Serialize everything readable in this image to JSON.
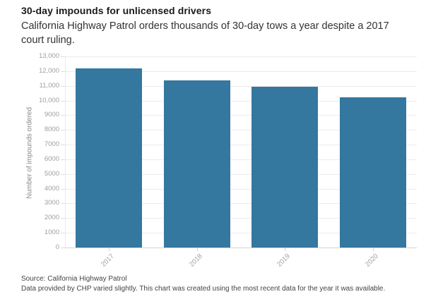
{
  "header": {
    "title": "30-day impounds for unlicensed drivers",
    "subtitle_lines": [
      "California Highway Patrol orders thousands of 30-day tows a year despite a 2017",
      "court ruling."
    ]
  },
  "chart_data": {
    "type": "bar",
    "title": "30-day impounds for unlicensed drivers",
    "subtitle": "California Highway Patrol orders thousands of 30-day tows a year despite a 2017 court ruling.",
    "categories": [
      "2017",
      "2018",
      "2019",
      "2020"
    ],
    "values": [
      12200,
      11350,
      10950,
      10200
    ],
    "xlabel": "",
    "ylabel": "Number of impounds ordered",
    "ylim": [
      0,
      13000
    ],
    "ytick_step": 1000,
    "ytick_labels_bottom_to_top": [
      "0",
      "1000",
      "2000",
      "3000",
      "4000",
      "5000",
      "6000",
      "7000",
      "8000",
      "9000",
      "10,000",
      "11,000",
      "12,000",
      "13,000"
    ],
    "grid": "horizontal",
    "legend": "none",
    "bar_color": "#34779f"
  },
  "footer": {
    "source": "Source: California Highway Patrol",
    "note": "Data provided by CHP varied slightly. This chart was created using the most recent data for the year it was available."
  },
  "colors": {
    "background": "#ffffff",
    "bar": "#34779f",
    "grid": "#ececec",
    "baseline": "#d4d4d4",
    "y_tick_mark": "#dcdcdc",
    "x_tick_mark": "#cfcfcf",
    "tick_label": "#9e9e9e",
    "axis_title": "#8a8a8a",
    "title": "#1a1a1a",
    "subtitle": "#333333",
    "footer": "#444444"
  }
}
